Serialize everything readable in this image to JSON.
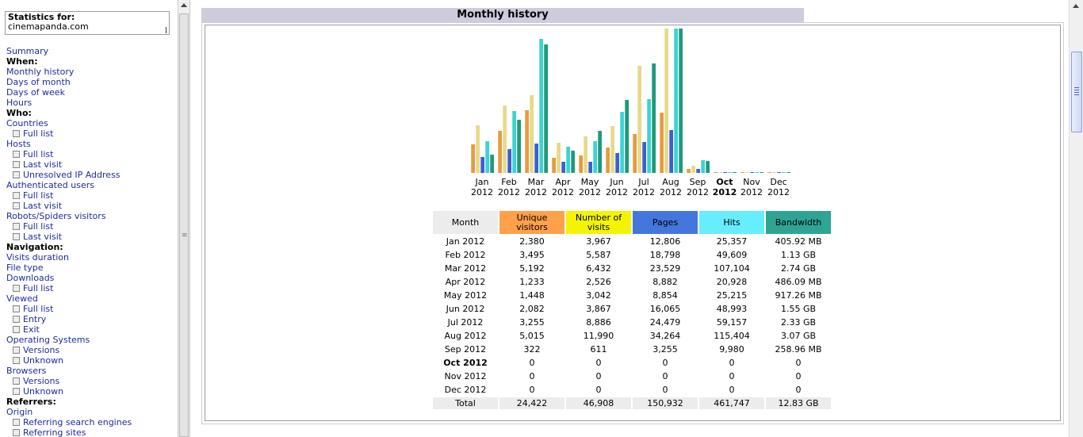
{
  "sidebar": {
    "stats_title": "Statistics for:",
    "domain": "cinemapanda.com",
    "menu": [
      {
        "label": "Summary",
        "kind": "link"
      },
      {
        "label": "When:",
        "kind": "head"
      },
      {
        "label": "Monthly history",
        "kind": "link"
      },
      {
        "label": "Days of month",
        "kind": "link"
      },
      {
        "label": "Days of week",
        "kind": "link"
      },
      {
        "label": "Hours",
        "kind": "link"
      },
      {
        "label": "Who:",
        "kind": "head"
      },
      {
        "label": "Countries",
        "kind": "link"
      },
      {
        "label": "Full list",
        "kind": "sub"
      },
      {
        "label": "Hosts",
        "kind": "link"
      },
      {
        "label": "Full list",
        "kind": "sub"
      },
      {
        "label": "Last visit",
        "kind": "sub"
      },
      {
        "label": "Unresolved IP Address",
        "kind": "sub"
      },
      {
        "label": "Authenticated users",
        "kind": "link"
      },
      {
        "label": "Full list",
        "kind": "sub"
      },
      {
        "label": "Last visit",
        "kind": "sub"
      },
      {
        "label": "Robots/Spiders visitors",
        "kind": "link"
      },
      {
        "label": "Full list",
        "kind": "sub"
      },
      {
        "label": "Last visit",
        "kind": "sub"
      },
      {
        "label": "Navigation:",
        "kind": "head"
      },
      {
        "label": "Visits duration",
        "kind": "link"
      },
      {
        "label": "File type",
        "kind": "link"
      },
      {
        "label": "Downloads",
        "kind": "link"
      },
      {
        "label": "Full list",
        "kind": "sub"
      },
      {
        "label": "Viewed",
        "kind": "link"
      },
      {
        "label": "Full list",
        "kind": "sub"
      },
      {
        "label": "Entry",
        "kind": "sub"
      },
      {
        "label": "Exit",
        "kind": "sub"
      },
      {
        "label": "Operating Systems",
        "kind": "link"
      },
      {
        "label": "Versions",
        "kind": "sub"
      },
      {
        "label": "Unknown",
        "kind": "sub"
      },
      {
        "label": "Browsers",
        "kind": "link"
      },
      {
        "label": "Versions",
        "kind": "sub"
      },
      {
        "label": "Unknown",
        "kind": "sub"
      },
      {
        "label": "Referrers:",
        "kind": "head"
      },
      {
        "label": "Origin",
        "kind": "link"
      },
      {
        "label": "Referring search engines",
        "kind": "sub"
      },
      {
        "label": "Referring sites",
        "kind": "sub"
      }
    ]
  },
  "main": {
    "section_title": "Monthly history",
    "current_month": "Oct",
    "headers": [
      {
        "label": "Month",
        "bg": "#ececec"
      },
      {
        "label": "Unique visitors",
        "bg": "#ffa04a"
      },
      {
        "label": "Number of visits",
        "bg": "#f4f400"
      },
      {
        "label": "Pages",
        "bg": "#4477dd"
      },
      {
        "label": "Hits",
        "bg": "#66eeff"
      },
      {
        "label": "Bandwidth",
        "bg": "#2ea495"
      }
    ],
    "rows": [
      [
        "Jan 2012",
        "2,380",
        "3,967",
        "12,806",
        "25,357",
        "405.92 MB"
      ],
      [
        "Feb 2012",
        "3,495",
        "5,587",
        "18,798",
        "49,609",
        "1.13 GB"
      ],
      [
        "Mar 2012",
        "5,192",
        "6,432",
        "23,529",
        "107,104",
        "2.74 GB"
      ],
      [
        "Apr 2012",
        "1,233",
        "2,526",
        "8,882",
        "20,928",
        "486.09 MB"
      ],
      [
        "May 2012",
        "1,448",
        "3,042",
        "8,854",
        "25,215",
        "917.26 MB"
      ],
      [
        "Jun 2012",
        "2,082",
        "3,867",
        "16,065",
        "48,993",
        "1.55 GB"
      ],
      [
        "Jul 2012",
        "3,255",
        "8,886",
        "24,479",
        "59,157",
        "2.33 GB"
      ],
      [
        "Aug 2012",
        "5,015",
        "11,990",
        "34,264",
        "115,404",
        "3.07 GB"
      ],
      [
        "Sep 2012",
        "322",
        "611",
        "3,255",
        "9,980",
        "258.96 MB"
      ],
      [
        "Oct 2012",
        "0",
        "0",
        "0",
        "0",
        "0"
      ],
      [
        "Nov 2012",
        "0",
        "0",
        "0",
        "0",
        "0"
      ],
      [
        "Dec 2012",
        "0",
        "0",
        "0",
        "0",
        "0"
      ]
    ],
    "total": [
      "Total",
      "24,422",
      "46,908",
      "150,932",
      "461,747",
      "12.83 GB"
    ]
  },
  "chart_data": {
    "type": "bar",
    "categories": [
      "Jan",
      "Feb",
      "Mar",
      "Apr",
      "May",
      "Jun",
      "Jul",
      "Aug",
      "Sep",
      "Oct",
      "Nov",
      "Dec"
    ],
    "years": [
      "2012",
      "2012",
      "2012",
      "2012",
      "2012",
      "2012",
      "2012",
      "2012",
      "2012",
      "2012",
      "2012",
      "2012"
    ],
    "series": [
      {
        "key": "visitors",
        "color": "#e89a3c",
        "values": [
          2380,
          3495,
          5192,
          1233,
          1448,
          2082,
          3255,
          5015,
          322,
          0,
          0,
          0
        ]
      },
      {
        "key": "visits",
        "color": "#e8d98a",
        "values": [
          3967,
          5587,
          6432,
          2526,
          3042,
          3867,
          8886,
          11990,
          611,
          0,
          0,
          0
        ]
      },
      {
        "key": "pages",
        "color": "#3b5fd0",
        "values": [
          12806,
          18798,
          23529,
          8882,
          8854,
          16065,
          24479,
          34264,
          3255,
          0,
          0,
          0
        ]
      },
      {
        "key": "hits",
        "color": "#3cd3d3",
        "values": [
          25357,
          49609,
          107104,
          20928,
          25215,
          48993,
          59157,
          115404,
          9980,
          0,
          0,
          0
        ]
      },
      {
        "key": "bandwidth",
        "color": "#1e9a7a",
        "values_gb": [
          0.3964,
          1.13,
          2.74,
          0.4747,
          0.8958,
          1.55,
          2.33,
          3.07,
          0.2529,
          0,
          0,
          0
        ]
      }
    ]
  }
}
